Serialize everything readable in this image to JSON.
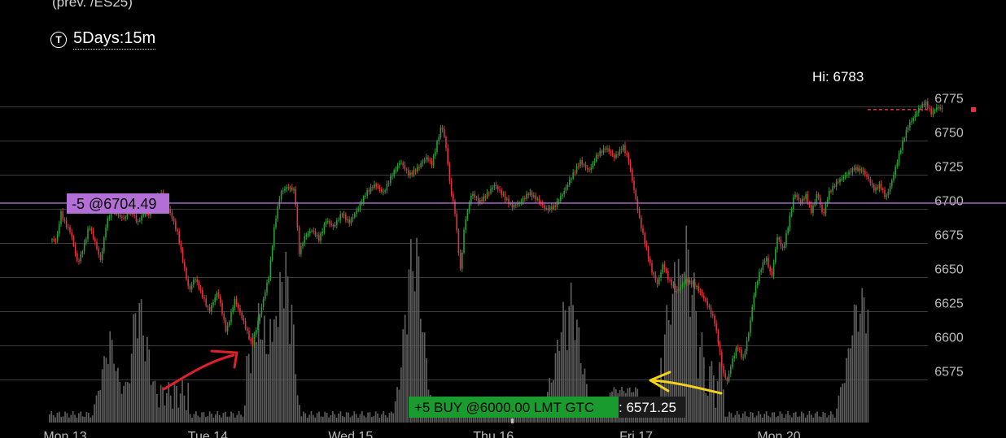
{
  "header": {
    "prev_contract": "(prev. /ES25)",
    "timeframe_icon_text": "T",
    "timeframe": "5Days:15m"
  },
  "colors": {
    "background": "#000000",
    "up": "#2a9d36",
    "down": "#e0333d",
    "grid": "#3a3a3a",
    "volume": "#5e5e5e",
    "sell_order": "#b46fd6",
    "buy_order": "#1a9b2e",
    "current_price": "#e0333d",
    "red_annotation": "#e0202a",
    "yellow_annotation": "#f2d21a"
  },
  "chart_data": {
    "type": "candlestick",
    "y_ticks": [
      6775,
      6750,
      6725,
      6700,
      6675,
      6650,
      6625,
      6600,
      6575
    ],
    "y_range": [
      6565,
      6795
    ],
    "x_labels": [
      "Mon 13",
      "Tue 14",
      "Wed 15",
      "Thu 16",
      "Fri 17",
      "Mon 20"
    ],
    "high_label": "Hi: 6783",
    "high_value": 6783,
    "last_price": 6773,
    "sell_order": {
      "label": "-5 @6704.49",
      "price": 6704.49
    },
    "buy_order": {
      "label": "+5 BUY @6000.00 LMT GTC",
      "price": 6000.0
    },
    "low_label": ": 6571.25",
    "low_value": 6571.25,
    "price_path": [
      [
        0,
        6678
      ],
      [
        0.02,
        6676
      ],
      [
        0.04,
        6682
      ],
      [
        0.06,
        6698
      ],
      [
        0.09,
        6690
      ],
      [
        0.13,
        6683
      ],
      [
        0.18,
        6660
      ],
      [
        0.22,
        6672
      ],
      [
        0.26,
        6688
      ],
      [
        0.3,
        6676
      ],
      [
        0.34,
        6662
      ],
      [
        0.38,
        6690
      ],
      [
        0.42,
        6700
      ],
      [
        0.46,
        6696
      ],
      [
        0.5,
        6693
      ],
      [
        0.55,
        6700
      ],
      [
        0.6,
        6690
      ],
      [
        0.64,
        6697
      ],
      [
        0.68,
        6696
      ],
      [
        0.72,
        6705
      ],
      [
        0.76,
        6712
      ],
      [
        0.8,
        6704
      ],
      [
        0.84,
        6694
      ],
      [
        0.88,
        6682
      ],
      [
        0.92,
        6660
      ],
      [
        0.96,
        6640
      ],
      [
        1.0,
        6650
      ],
      [
        1.04,
        6640
      ],
      [
        1.1,
        6625
      ],
      [
        1.16,
        6640
      ],
      [
        1.22,
        6610
      ],
      [
        1.28,
        6634
      ],
      [
        1.34,
        6618
      ],
      [
        1.4,
        6600
      ],
      [
        1.46,
        6625
      ],
      [
        1.52,
        6652
      ],
      [
        1.56,
        6690
      ],
      [
        1.6,
        6712
      ],
      [
        1.64,
        6716
      ],
      [
        1.68,
        6715
      ],
      [
        1.7,
        6713
      ],
      [
        1.73,
        6668
      ],
      [
        1.77,
        6680
      ],
      [
        1.82,
        6685
      ],
      [
        1.87,
        6678
      ],
      [
        1.92,
        6692
      ],
      [
        1.97,
        6687
      ],
      [
        2.03,
        6697
      ],
      [
        2.08,
        6690
      ],
      [
        2.14,
        6700
      ],
      [
        2.2,
        6712
      ],
      [
        2.26,
        6718
      ],
      [
        2.32,
        6712
      ],
      [
        2.38,
        6725
      ],
      [
        2.44,
        6735
      ],
      [
        2.5,
        6725
      ],
      [
        2.56,
        6730
      ],
      [
        2.62,
        6738
      ],
      [
        2.66,
        6733
      ],
      [
        2.7,
        6750
      ],
      [
        2.73,
        6762
      ],
      [
        2.76,
        6745
      ],
      [
        2.79,
        6715
      ],
      [
        2.82,
        6700
      ],
      [
        2.86,
        6655
      ],
      [
        2.89,
        6690
      ],
      [
        2.94,
        6712
      ],
      [
        2.99,
        6705
      ],
      [
        3.04,
        6710
      ],
      [
        3.1,
        6718
      ],
      [
        3.16,
        6710
      ],
      [
        3.22,
        6702
      ],
      [
        3.28,
        6705
      ],
      [
        3.34,
        6712
      ],
      [
        3.4,
        6707
      ],
      [
        3.46,
        6700
      ],
      [
        3.52,
        6702
      ],
      [
        3.58,
        6712
      ],
      [
        3.64,
        6724
      ],
      [
        3.7,
        6735
      ],
      [
        3.76,
        6728
      ],
      [
        3.82,
        6740
      ],
      [
        3.88,
        6745
      ],
      [
        3.94,
        6738
      ],
      [
        4.0,
        6746
      ],
      [
        4.04,
        6735
      ],
      [
        4.08,
        6712
      ],
      [
        4.12,
        6690
      ],
      [
        4.16,
        6672
      ],
      [
        4.2,
        6655
      ],
      [
        4.24,
        6645
      ],
      [
        4.28,
        6660
      ],
      [
        4.32,
        6648
      ],
      [
        4.38,
        6640
      ],
      [
        4.44,
        6648
      ],
      [
        4.5,
        6645
      ],
      [
        4.56,
        6636
      ],
      [
        4.6,
        6628
      ],
      [
        4.64,
        6618
      ],
      [
        4.67,
        6600
      ],
      [
        4.7,
        6580
      ],
      [
        4.73,
        6574
      ],
      [
        4.76,
        6588
      ],
      [
        4.8,
        6600
      ],
      [
        4.84,
        6590
      ],
      [
        4.88,
        6610
      ],
      [
        4.92,
        6640
      ],
      [
        4.96,
        6655
      ],
      [
        5.0,
        6665
      ],
      [
        5.04,
        6650
      ],
      [
        5.08,
        6680
      ],
      [
        5.12,
        6670
      ],
      [
        5.16,
        6690
      ],
      [
        5.2,
        6712
      ],
      [
        5.24,
        6705
      ],
      [
        5.28,
        6710
      ],
      [
        5.32,
        6698
      ],
      [
        5.36,
        6712
      ],
      [
        5.4,
        6695
      ],
      [
        5.44,
        6712
      ],
      [
        5.5,
        6720
      ],
      [
        5.56,
        6725
      ],
      [
        5.62,
        6730
      ],
      [
        5.68,
        6728
      ],
      [
        5.72,
        6722
      ],
      [
        5.76,
        6714
      ],
      [
        5.8,
        6718
      ],
      [
        5.84,
        6708
      ],
      [
        5.88,
        6720
      ],
      [
        5.92,
        6735
      ],
      [
        5.96,
        6750
      ],
      [
        6.0,
        6762
      ],
      [
        6.04,
        6768
      ],
      [
        6.08,
        6775
      ],
      [
        6.12,
        6778
      ],
      [
        6.16,
        6770
      ],
      [
        6.2,
        6775
      ],
      [
        6.24,
        6773
      ]
    ]
  }
}
